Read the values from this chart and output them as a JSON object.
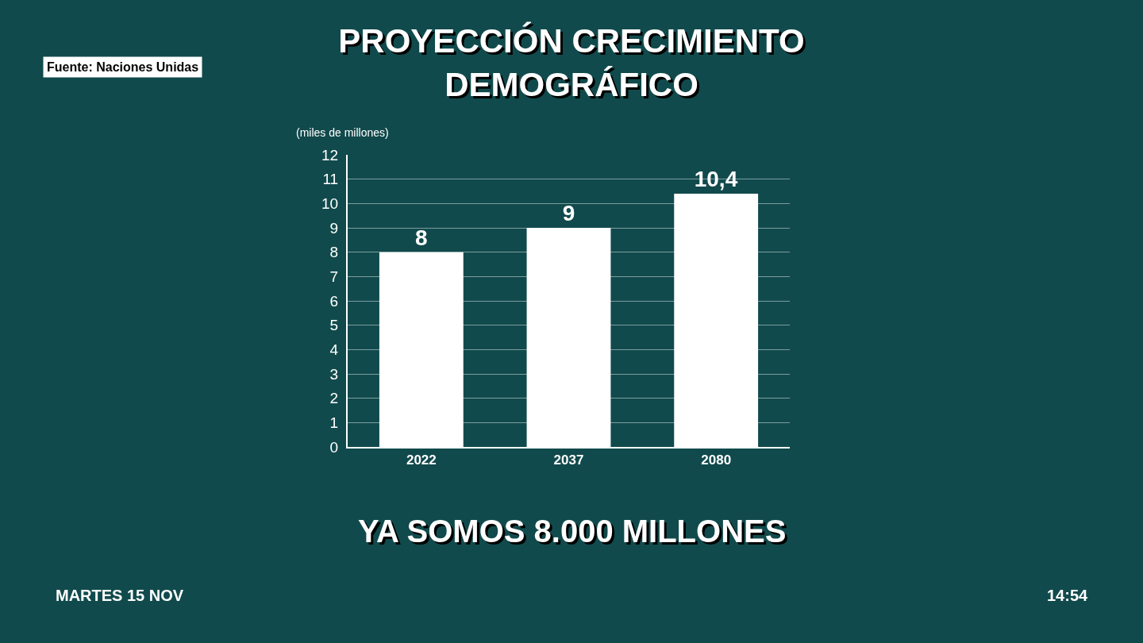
{
  "chart_data": {
    "type": "bar",
    "title": "PROYECCIÓN CRECIMIENTO DEMOGRÁFICO",
    "ylabel": "(miles de millones)",
    "categories": [
      "2022",
      "2037",
      "2080"
    ],
    "values": [
      8,
      9,
      10.4
    ],
    "value_labels": [
      "8",
      "9",
      "10,4"
    ],
    "color": "#ffffff",
    "ylim": [
      0,
      12
    ],
    "yticks": [
      0,
      1,
      2,
      3,
      4,
      5,
      6,
      7,
      8,
      9,
      10,
      11,
      12
    ],
    "grid": "y",
    "legend": false,
    "annotations": [
      "Fuente: Naciones Unidas",
      "YA SOMOS 8.000 MILLONES",
      "MARTES 15 NOV",
      "14:54"
    ]
  }
}
